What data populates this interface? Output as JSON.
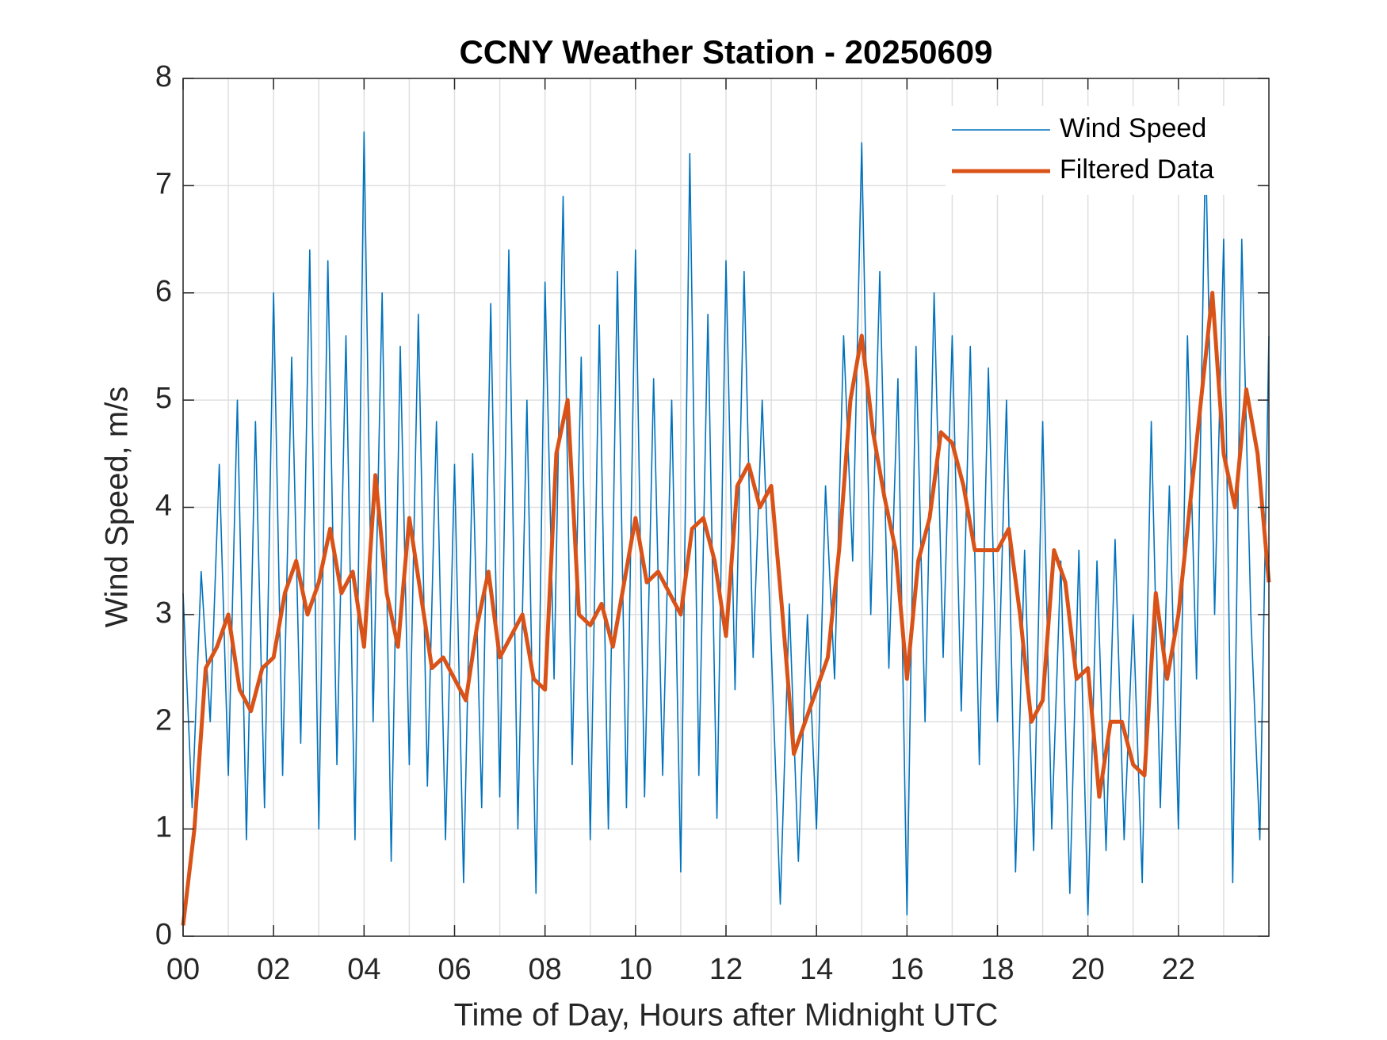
{
  "chart_data": {
    "type": "line",
    "title": "CCNY Weather Station - 20250609",
    "xlabel": "Time of Day, Hours after Midnight UTC",
    "ylabel": "Wind Speed, m/s",
    "xlim": [
      0,
      24
    ],
    "ylim": [
      0,
      8
    ],
    "xticks": [
      {
        "value": 0,
        "label": "00"
      },
      {
        "value": 2,
        "label": "02"
      },
      {
        "value": 4,
        "label": "04"
      },
      {
        "value": 6,
        "label": "06"
      },
      {
        "value": 8,
        "label": "08"
      },
      {
        "value": 10,
        "label": "10"
      },
      {
        "value": 12,
        "label": "12"
      },
      {
        "value": 14,
        "label": "14"
      },
      {
        "value": 16,
        "label": "16"
      },
      {
        "value": 18,
        "label": "18"
      },
      {
        "value": 20,
        "label": "20"
      },
      {
        "value": 22,
        "label": "22"
      }
    ],
    "xminorticks": [
      1,
      3,
      5,
      7,
      9,
      11,
      13,
      15,
      17,
      19,
      21,
      23
    ],
    "yticks": [
      0,
      1,
      2,
      3,
      4,
      5,
      6,
      7,
      8
    ],
    "grid": true,
    "legend": "top-right",
    "series": [
      {
        "name": "Wind Speed",
        "color": "#0072bd",
        "width": 1.6,
        "x": [
          0.0,
          0.2,
          0.4,
          0.6,
          0.8,
          1.0,
          1.2,
          1.4,
          1.6,
          1.8,
          2.0,
          2.2,
          2.4,
          2.6,
          2.8,
          3.0,
          3.2,
          3.4,
          3.6,
          3.8,
          4.0,
          4.2,
          4.4,
          4.6,
          4.8,
          5.0,
          5.2,
          5.4,
          5.6,
          5.8,
          6.0,
          6.2,
          6.4,
          6.6,
          6.8,
          7.0,
          7.2,
          7.4,
          7.6,
          7.8,
          8.0,
          8.2,
          8.4,
          8.6,
          8.8,
          9.0,
          9.2,
          9.4,
          9.6,
          9.8,
          10.0,
          10.2,
          10.4,
          10.6,
          10.8,
          11.0,
          11.2,
          11.4,
          11.6,
          11.8,
          12.0,
          12.2,
          12.4,
          12.6,
          12.8,
          13.0,
          13.2,
          13.4,
          13.6,
          13.8,
          14.0,
          14.2,
          14.4,
          14.6,
          14.8,
          15.0,
          15.2,
          15.4,
          15.6,
          15.8,
          16.0,
          16.2,
          16.4,
          16.6,
          16.8,
          17.0,
          17.2,
          17.4,
          17.6,
          17.8,
          18.0,
          18.2,
          18.4,
          18.6,
          18.8,
          19.0,
          19.2,
          19.4,
          19.6,
          19.8,
          20.0,
          20.2,
          20.4,
          20.6,
          20.8,
          21.0,
          21.2,
          21.4,
          21.6,
          21.8,
          22.0,
          22.2,
          22.4,
          22.6,
          22.8,
          23.0,
          23.2,
          23.4,
          23.6,
          23.8,
          24.0
        ],
        "values": [
          3.2,
          1.2,
          3.4,
          2.0,
          4.4,
          1.5,
          5.0,
          0.9,
          4.8,
          1.2,
          6.0,
          1.5,
          5.4,
          1.8,
          6.4,
          1.0,
          6.3,
          1.6,
          5.6,
          0.9,
          7.5,
          2.0,
          6.0,
          0.7,
          5.5,
          1.6,
          5.8,
          1.4,
          4.8,
          0.9,
          4.4,
          0.5,
          4.5,
          1.2,
          5.9,
          1.3,
          6.4,
          1.0,
          5.0,
          0.4,
          6.1,
          2.4,
          6.9,
          1.6,
          5.4,
          0.9,
          5.7,
          1.0,
          6.2,
          1.2,
          6.4,
          1.3,
          5.2,
          1.5,
          5.0,
          0.6,
          7.3,
          1.5,
          5.8,
          1.1,
          6.3,
          2.3,
          6.2,
          2.6,
          5.0,
          2.7,
          0.3,
          3.1,
          0.7,
          3.0,
          1.0,
          4.2,
          2.4,
          5.6,
          3.5,
          7.4,
          3.0,
          6.2,
          2.5,
          5.2,
          0.2,
          5.5,
          2.0,
          6.0,
          2.6,
          5.6,
          2.1,
          5.5,
          1.6,
          5.3,
          2.0,
          5.0,
          0.6,
          3.6,
          0.8,
          4.8,
          1.0,
          3.5,
          0.4,
          3.6,
          0.2,
          3.5,
          0.8,
          3.7,
          0.9,
          3.0,
          0.5,
          4.8,
          1.2,
          4.2,
          1.0,
          5.6,
          2.4,
          7.4,
          3.0,
          6.5,
          0.5,
          6.5,
          3.0,
          0.9,
          5.6
        ]
      },
      {
        "name": "Filtered Data",
        "color": "#d95319",
        "width": 5,
        "x": [
          0.0,
          0.25,
          0.5,
          0.75,
          1.0,
          1.25,
          1.5,
          1.75,
          2.0,
          2.25,
          2.5,
          2.75,
          3.0,
          3.25,
          3.5,
          3.75,
          4.0,
          4.25,
          4.5,
          4.75,
          5.0,
          5.25,
          5.5,
          5.75,
          6.0,
          6.25,
          6.5,
          6.75,
          7.0,
          7.25,
          7.5,
          7.75,
          8.0,
          8.25,
          8.5,
          8.75,
          9.0,
          9.25,
          9.5,
          9.75,
          10.0,
          10.25,
          10.5,
          10.75,
          11.0,
          11.25,
          11.5,
          11.75,
          12.0,
          12.25,
          12.5,
          12.75,
          13.0,
          13.25,
          13.5,
          13.75,
          14.0,
          14.25,
          14.5,
          14.75,
          15.0,
          15.25,
          15.5,
          15.75,
          16.0,
          16.25,
          16.5,
          16.75,
          17.0,
          17.25,
          17.5,
          17.75,
          18.0,
          18.25,
          18.5,
          18.75,
          19.0,
          19.25,
          19.5,
          19.75,
          20.0,
          20.25,
          20.5,
          20.75,
          21.0,
          21.25,
          21.5,
          21.75,
          22.0,
          22.25,
          22.5,
          22.75,
          23.0,
          23.25,
          23.5,
          23.75,
          24.0
        ],
        "values": [
          0.1,
          1.0,
          2.5,
          2.7,
          3.0,
          2.3,
          2.1,
          2.5,
          2.6,
          3.2,
          3.5,
          3.0,
          3.3,
          3.8,
          3.2,
          3.4,
          2.7,
          4.3,
          3.2,
          2.7,
          3.9,
          3.2,
          2.5,
          2.6,
          2.4,
          2.2,
          2.9,
          3.4,
          2.6,
          2.8,
          3.0,
          2.4,
          2.3,
          4.5,
          5.0,
          3.0,
          2.9,
          3.1,
          2.7,
          3.3,
          3.9,
          3.3,
          3.4,
          3.2,
          3.0,
          3.8,
          3.9,
          3.5,
          2.8,
          4.2,
          4.4,
          4.0,
          4.2,
          3.0,
          1.7,
          2.0,
          2.3,
          2.6,
          3.6,
          5.0,
          5.6,
          4.7,
          4.1,
          3.6,
          2.4,
          3.5,
          3.9,
          4.7,
          4.6,
          4.2,
          3.6,
          3.6,
          3.6,
          3.8,
          3.0,
          2.0,
          2.2,
          3.6,
          3.3,
          2.4,
          2.5,
          1.3,
          2.0,
          2.0,
          1.6,
          1.5,
          3.2,
          2.4,
          3.0,
          4.0,
          5.0,
          6.0,
          4.5,
          4.0,
          5.1,
          4.5,
          3.3
        ]
      }
    ]
  }
}
